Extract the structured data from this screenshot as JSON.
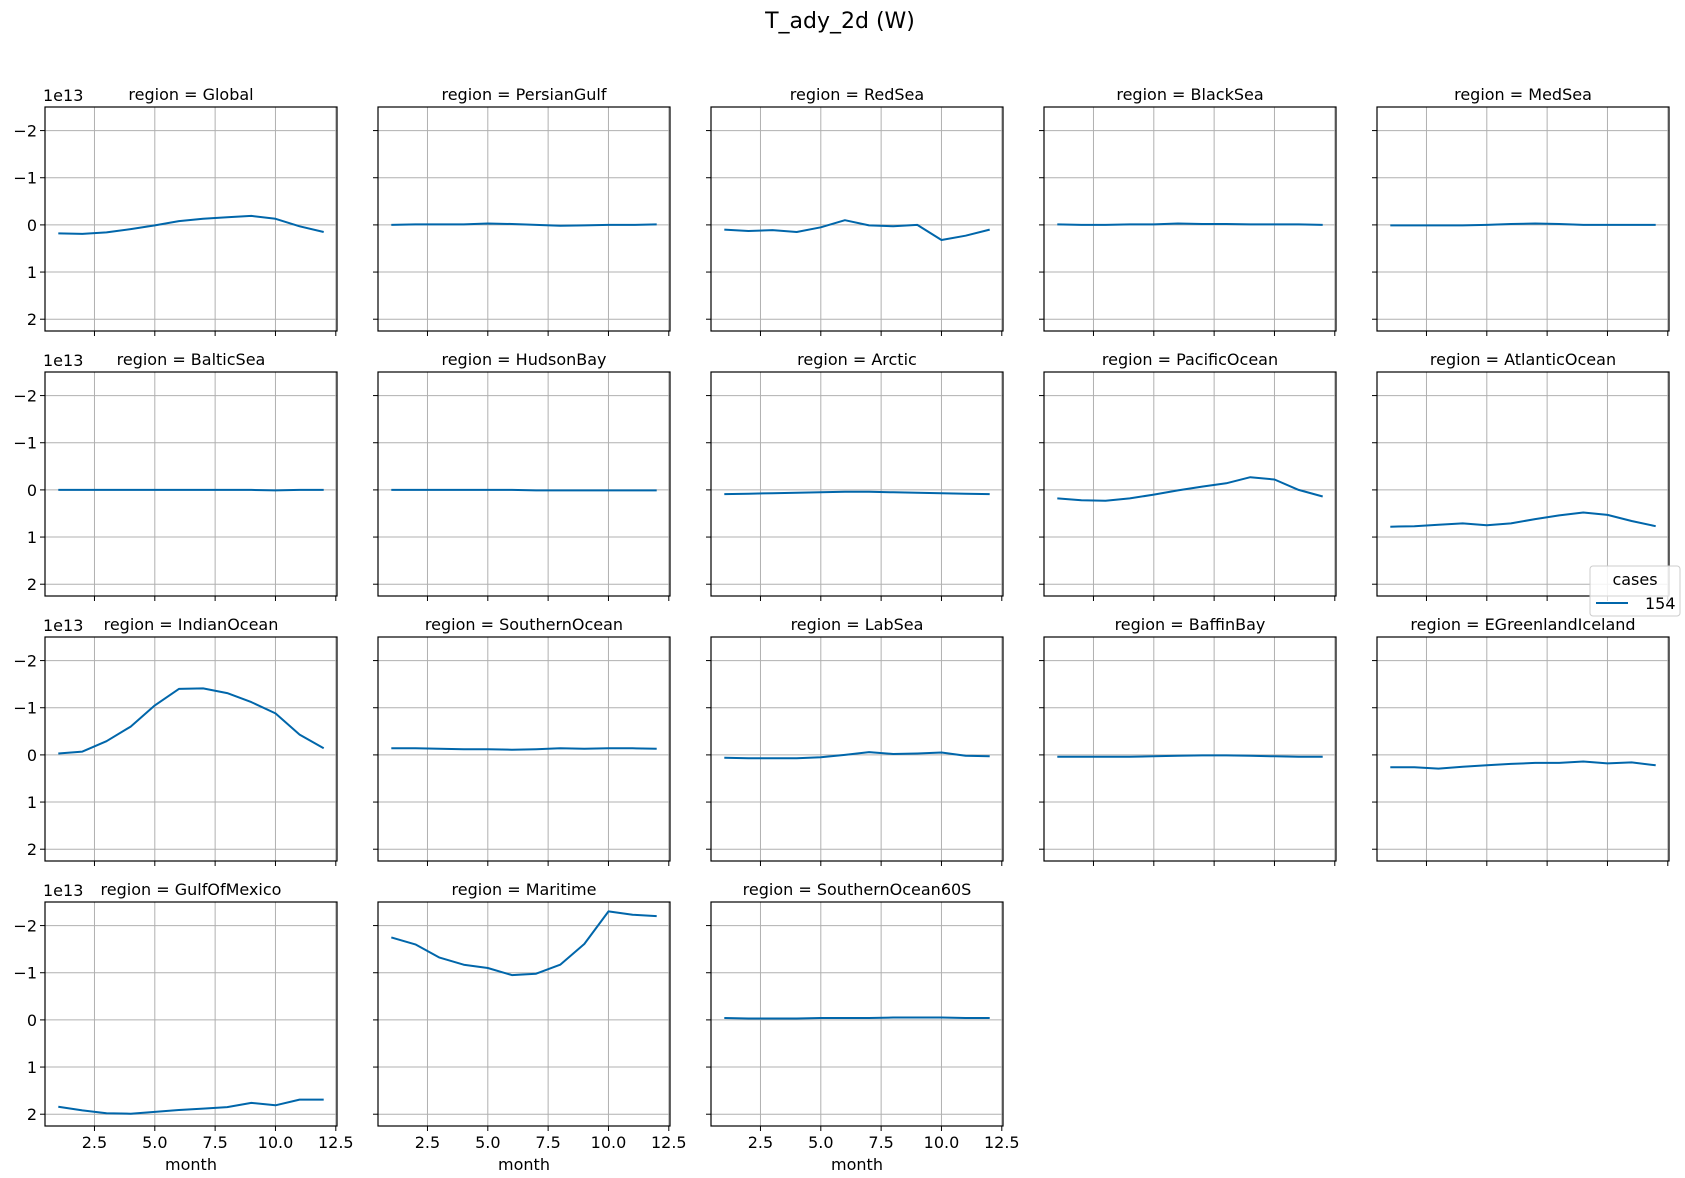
{
  "figure": {
    "title": "T_ady_2d (W)",
    "offset_label": "1e13",
    "line_color": "#0066aa",
    "grid_color": "#b0b0b0"
  },
  "legend": {
    "title": "cases",
    "entries": [
      "154"
    ],
    "placement": "right"
  },
  "chart_data": {
    "type": "line",
    "facet": "region",
    "xlabel": "month",
    "xlim": [
      0.45,
      12.55
    ],
    "xticks": [
      2.5,
      5.0,
      7.5,
      10.0,
      12.5
    ],
    "xtick_labels": [
      "2.5",
      "5.0",
      "7.5",
      "10.0",
      "12.5"
    ],
    "ylim": [
      2.25,
      -2.5
    ],
    "y_inverted": true,
    "y_multiplier": "1e13",
    "yticks": [
      -2,
      -1,
      0,
      1,
      2
    ],
    "ytick_labels": [
      "−2",
      "−1",
      "0",
      "1",
      "2"
    ],
    "grid": true,
    "x": [
      1,
      2,
      3,
      4,
      5,
      6,
      7,
      8,
      9,
      10,
      11,
      12
    ],
    "panels": [
      {
        "title": "region = Global",
        "values": [
          0.18,
          0.19,
          0.16,
          0.09,
          0.01,
          -0.08,
          -0.13,
          -0.16,
          -0.19,
          -0.13,
          0.03,
          0.15
        ]
      },
      {
        "title": "region = PersianGulf",
        "values": [
          0.0,
          -0.01,
          -0.01,
          -0.01,
          -0.03,
          -0.02,
          0.0,
          0.02,
          0.01,
          0.0,
          0.0,
          -0.01
        ]
      },
      {
        "title": "region = RedSea",
        "values": [
          0.1,
          0.13,
          0.11,
          0.15,
          0.05,
          -0.1,
          0.01,
          0.03,
          0.0,
          0.32,
          0.23,
          0.1
        ]
      },
      {
        "title": "region = BlackSea",
        "values": [
          -0.01,
          0.0,
          0.0,
          -0.01,
          -0.01,
          -0.03,
          -0.02,
          -0.02,
          -0.01,
          -0.01,
          -0.01,
          0.0
        ]
      },
      {
        "title": "region = MedSea",
        "values": [
          0.01,
          0.01,
          0.01,
          0.01,
          0.0,
          -0.02,
          -0.03,
          -0.02,
          0.0,
          0.0,
          0.0,
          0.0
        ]
      },
      {
        "title": "region = BalticSea",
        "values": [
          0.0,
          0.0,
          0.0,
          0.0,
          0.0,
          0.0,
          0.0,
          0.0,
          0.0,
          0.01,
          0.0,
          0.0
        ]
      },
      {
        "title": "region = HudsonBay",
        "values": [
          0.0,
          0.0,
          0.0,
          0.0,
          0.0,
          0.0,
          0.01,
          0.01,
          0.01,
          0.01,
          0.01,
          0.01
        ]
      },
      {
        "title": "region = Arctic",
        "values": [
          0.09,
          0.08,
          0.07,
          0.06,
          0.05,
          0.04,
          0.04,
          0.05,
          0.06,
          0.07,
          0.08,
          0.09
        ]
      },
      {
        "title": "region = PacificOcean",
        "values": [
          0.18,
          0.22,
          0.23,
          0.18,
          0.1,
          0.01,
          -0.07,
          -0.14,
          -0.27,
          -0.22,
          0.0,
          0.14
        ]
      },
      {
        "title": "region = AtlanticOcean",
        "values": [
          0.78,
          0.77,
          0.74,
          0.71,
          0.75,
          0.71,
          0.62,
          0.54,
          0.48,
          0.53,
          0.66,
          0.77
        ]
      },
      {
        "title": "region = IndianOcean",
        "values": [
          -0.03,
          -0.07,
          -0.29,
          -0.6,
          -1.05,
          -1.4,
          -1.41,
          -1.31,
          -1.12,
          -0.88,
          -0.43,
          -0.14
        ]
      },
      {
        "title": "region = SouthernOcean",
        "values": [
          -0.14,
          -0.14,
          -0.13,
          -0.12,
          -0.12,
          -0.11,
          -0.12,
          -0.14,
          -0.13,
          -0.14,
          -0.14,
          -0.13
        ]
      },
      {
        "title": "region = LabSea",
        "values": [
          0.06,
          0.07,
          0.07,
          0.07,
          0.05,
          0.0,
          -0.06,
          -0.02,
          -0.03,
          -0.05,
          0.02,
          0.03
        ]
      },
      {
        "title": "region = BaffinBay",
        "values": [
          0.04,
          0.04,
          0.04,
          0.04,
          0.03,
          0.02,
          0.01,
          0.01,
          0.02,
          0.03,
          0.04,
          0.04
        ]
      },
      {
        "title": "region = EGreenlandIceland",
        "values": [
          0.26,
          0.26,
          0.29,
          0.25,
          0.22,
          0.19,
          0.17,
          0.17,
          0.14,
          0.18,
          0.16,
          0.22
        ]
      },
      {
        "title": "region = GulfOfMexico",
        "values": [
          1.84,
          1.92,
          1.98,
          1.99,
          1.95,
          1.91,
          1.88,
          1.85,
          1.76,
          1.81,
          1.69,
          1.69
        ]
      },
      {
        "title": "region = Maritime",
        "values": [
          -1.75,
          -1.6,
          -1.32,
          -1.17,
          -1.1,
          -0.95,
          -0.98,
          -1.17,
          -1.61,
          -2.3,
          -2.23,
          -2.2
        ]
      },
      {
        "title": "region = SouthernOcean60S",
        "values": [
          -0.04,
          -0.03,
          -0.03,
          -0.03,
          -0.04,
          -0.04,
          -0.04,
          -0.05,
          -0.05,
          -0.05,
          -0.04,
          -0.04
        ]
      }
    ]
  }
}
